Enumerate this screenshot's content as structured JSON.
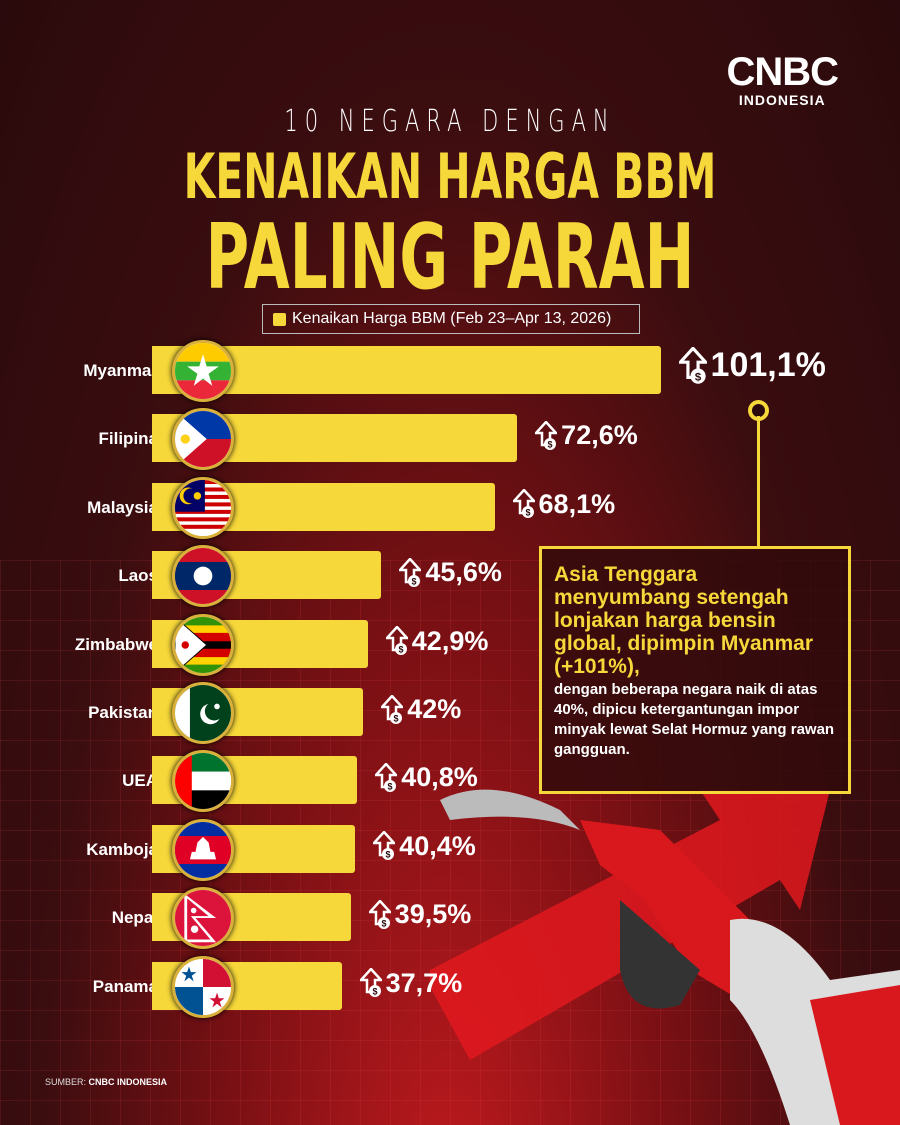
{
  "brand": {
    "line1": "CNBC",
    "line2": "INDONESIA"
  },
  "header": {
    "subtitle": "10 NEGARA DENGAN",
    "title_line1": "KENAIKAN HARGA BBM",
    "title_line2": "PALING PARAH"
  },
  "chart_data": {
    "type": "bar",
    "orientation": "horizontal",
    "legend": "Kenaikan Harga BBM (Feb 23–Apr 13, 2026)",
    "legend_position": "top",
    "categories": [
      "Myanmar",
      "Filipina",
      "Malaysia",
      "Laos",
      "Zimbabwe",
      "Pakistan",
      "UEA",
      "Kamboja",
      "Nepal",
      "Panama"
    ],
    "values": [
      101.1,
      72.6,
      68.1,
      45.6,
      42.9,
      42,
      40.8,
      40.4,
      39.5,
      37.7
    ],
    "labels": [
      "101,1%",
      "72,6%",
      "68,1%",
      "45,6%",
      "42,9%",
      "42%",
      "40,8%",
      "40,4%",
      "39,5%",
      "37,7%"
    ],
    "unit": "%",
    "bar_color": "#f7d83a",
    "grid": false
  },
  "callout": {
    "highlight": "Asia Tenggara menyumbang setengah lonjakan harga bensin global, dipimpin Myanmar (+101%),",
    "body": "dengan beberapa negara naik di atas 40%, dipicu ketergantungan impor minyak lewat Selat Hormuz yang rawan gangguan."
  },
  "source": {
    "label": "SUMBER:",
    "value": "CNBC INDONESIA"
  },
  "colors": {
    "accent": "#f7d83a",
    "background": "#2a0a0c",
    "red": "#c01a1e"
  }
}
